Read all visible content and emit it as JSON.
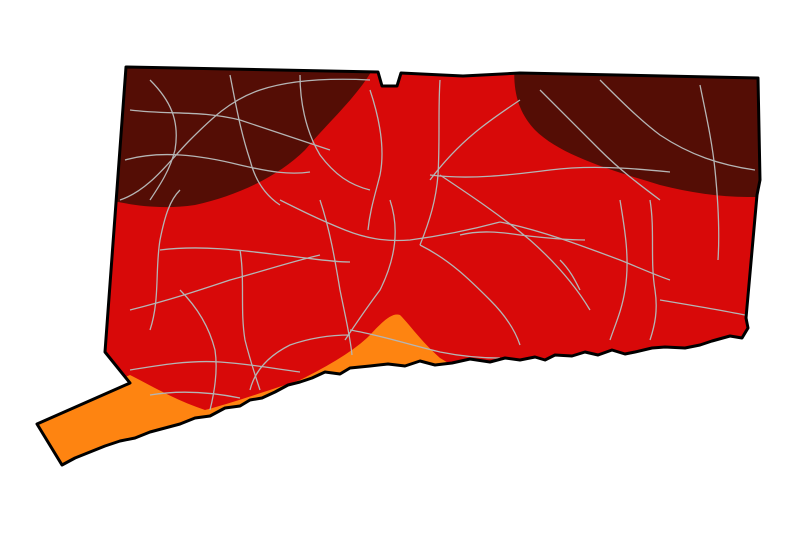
{
  "map": {
    "region": "Connecticut",
    "zones": [
      {
        "category": "extreme",
        "color": "#540d05"
      },
      {
        "category": "severe",
        "color": "#d80909"
      },
      {
        "category": "moderate",
        "color": "#fe8411"
      }
    ],
    "outline_color": "#000000",
    "roads_color": "#b5b5b5",
    "background": "#ffffff"
  }
}
